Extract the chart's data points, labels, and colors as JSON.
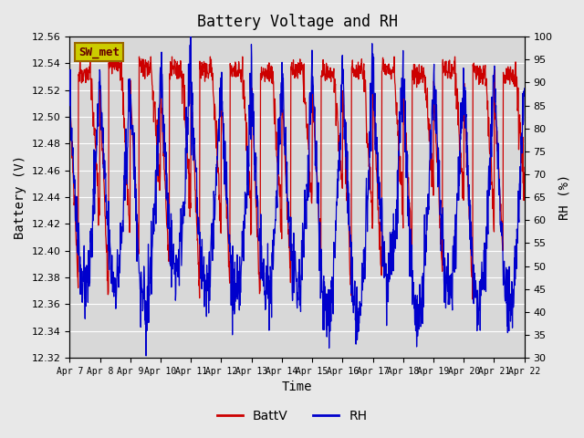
{
  "title": "Battery Voltage and RH",
  "xlabel": "Time",
  "ylabel_left": "Battery (V)",
  "ylabel_right": "RH (%)",
  "legend_label": "SW_met",
  "batt_ylim": [
    12.32,
    12.56
  ],
  "rh_ylim": [
    30,
    100
  ],
  "batt_yticks": [
    12.32,
    12.34,
    12.36,
    12.38,
    12.4,
    12.42,
    12.44,
    12.46,
    12.48,
    12.5,
    12.52,
    12.54,
    12.56
  ],
  "rh_yticks": [
    30,
    35,
    40,
    45,
    50,
    55,
    60,
    65,
    70,
    75,
    80,
    85,
    90,
    95,
    100
  ],
  "x_tick_labels": [
    "Apr 7",
    "Apr 8",
    "Apr 9",
    "Apr 10",
    "Apr 11",
    "Apr 12",
    "Apr 13",
    "Apr 14",
    "Apr 15",
    "Apr 16",
    "Apr 17",
    "Apr 18",
    "Apr 19",
    "Apr 20",
    "Apr 21",
    "Apr 22"
  ],
  "line_color_batt": "#cc0000",
  "line_color_rh": "#0000cc",
  "bg_color": "#e8e8e8",
  "plot_bg_color": "#d8d8d8",
  "grid_color": "#ffffff",
  "legend_box_color": "#cccc00",
  "legend_box_text_color": "#660000"
}
